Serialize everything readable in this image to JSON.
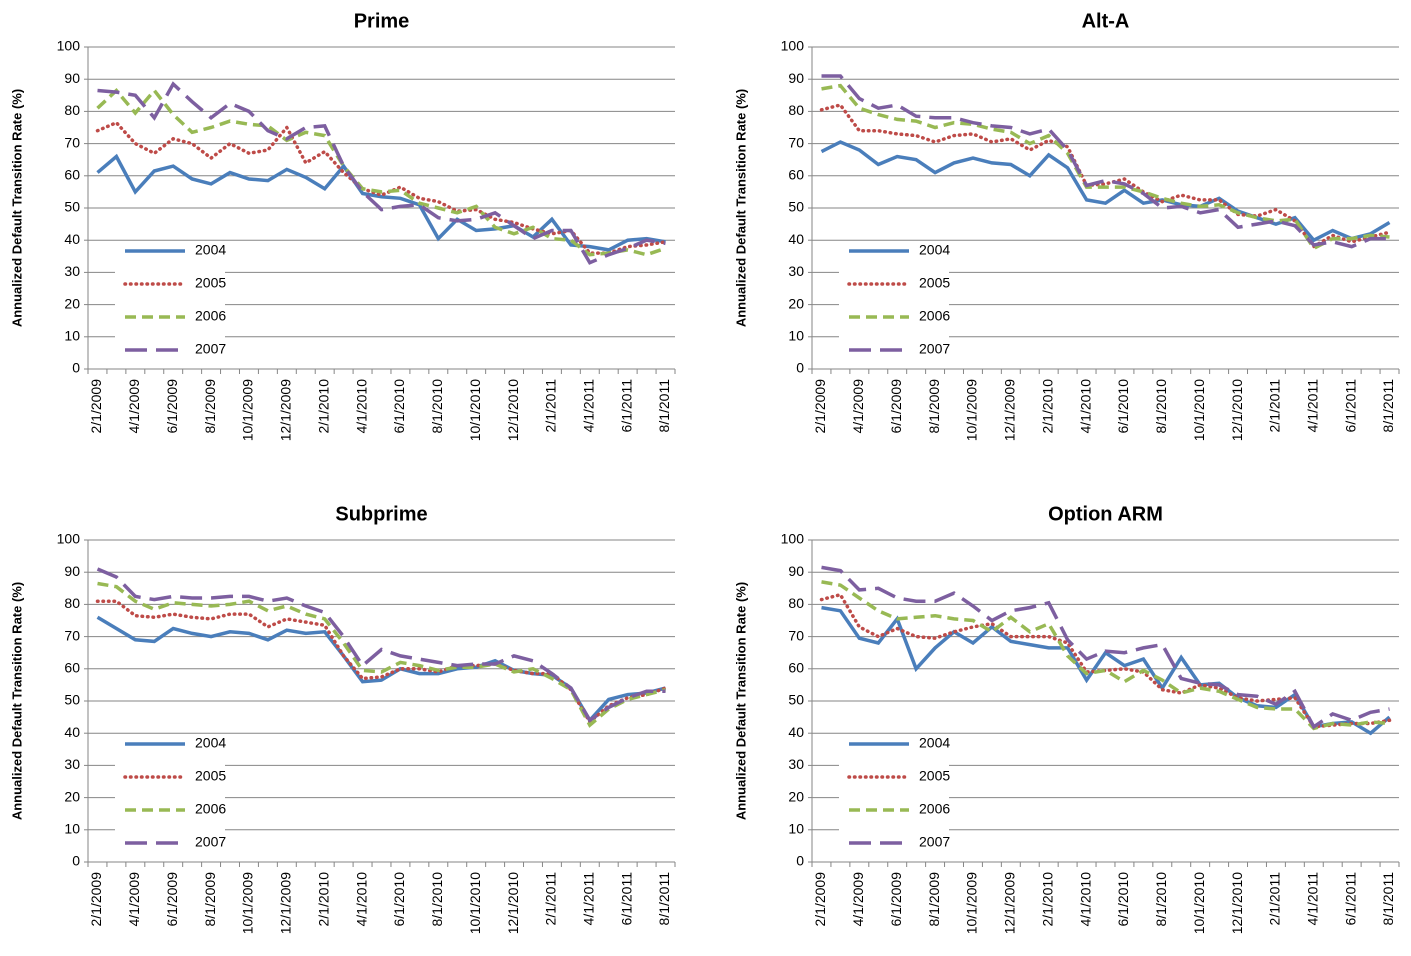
{
  "chart_data": [
    {
      "type": "line",
      "title": "Prime",
      "ylabel": "Annualized Default Transition Rate (%)",
      "categories": [
        "2/1/2009",
        null,
        "4/1/2009",
        null,
        "6/1/2009",
        null,
        "8/1/2009",
        null,
        "10/1/2009",
        null,
        "12/1/2009",
        null,
        "2/1/2010",
        null,
        "4/1/2010",
        null,
        "6/1/2010",
        null,
        "8/1/2010",
        null,
        "10/1/2010",
        null,
        "12/1/2010",
        null,
        "2/1/2011",
        null,
        "4/1/2011",
        null,
        "6/1/2011",
        null,
        "8/1/2011"
      ],
      "ylim": [
        0,
        100
      ],
      "yticks": [
        0,
        10,
        20,
        30,
        40,
        50,
        60,
        70,
        80,
        90,
        100
      ],
      "grid": true,
      "legend": "lower left",
      "series": [
        {
          "name": "2004",
          "color": "#4a7ebb",
          "dash": "solid",
          "values": [
            61,
            66,
            55,
            61.5,
            63,
            59,
            57.5,
            61,
            59,
            58.5,
            62,
            59.5,
            56,
            63,
            54.5,
            53.5,
            53,
            51,
            40.5,
            46.5,
            43,
            43.5,
            44.5,
            41,
            46.5,
            38.5,
            38,
            37,
            40,
            40.5,
            39.5
          ]
        },
        {
          "name": "2005",
          "color": "#be4b48",
          "dash": "dotted",
          "values": [
            74,
            76.5,
            70,
            67,
            71.5,
            70,
            65.5,
            70,
            67,
            68,
            75,
            64,
            67.5,
            61,
            56,
            54,
            56.5,
            53,
            52,
            49,
            49.5,
            46.5,
            45.5,
            43.5,
            42,
            43,
            36,
            36,
            38,
            38.5,
            39.5
          ]
        },
        {
          "name": "2006",
          "color": "#98b954",
          "dash": "dashed",
          "values": [
            81,
            86.5,
            79.5,
            86.5,
            79,
            73.5,
            75,
            77,
            76,
            75.5,
            71,
            73.5,
            72.5,
            63,
            56,
            55,
            55.5,
            51.5,
            50,
            48.5,
            50.5,
            44,
            42,
            44,
            40.5,
            40,
            35.5,
            36,
            37,
            35.5,
            37.5
          ]
        },
        {
          "name": "2007",
          "color": "#7d5fa0",
          "dash": "longdash",
          "values": [
            86.5,
            86,
            85,
            78,
            88.5,
            83,
            78,
            82.5,
            80,
            74,
            71.5,
            75,
            75.5,
            63,
            55,
            49.5,
            50.5,
            51,
            47,
            46,
            46.5,
            48.5,
            44.5,
            40.5,
            43,
            43,
            33,
            35.5,
            37.5,
            40,
            39
          ]
        }
      ]
    },
    {
      "type": "line",
      "title": "Alt-A",
      "ylabel": "Annualized Default Transition Rate (%)",
      "categories": [
        "2/1/2009",
        null,
        "4/1/2009",
        null,
        "6/1/2009",
        null,
        "8/1/2009",
        null,
        "10/1/2009",
        null,
        "12/1/2009",
        null,
        "2/1/2010",
        null,
        "4/1/2010",
        null,
        "6/1/2010",
        null,
        "8/1/2010",
        null,
        "10/1/2010",
        null,
        "12/1/2010",
        null,
        "2/1/2011",
        null,
        "4/1/2011",
        null,
        "6/1/2011",
        null,
        "8/1/2011"
      ],
      "ylim": [
        0,
        100
      ],
      "yticks": [
        0,
        10,
        20,
        30,
        40,
        50,
        60,
        70,
        80,
        90,
        100
      ],
      "grid": true,
      "legend": "lower left",
      "series": [
        {
          "name": "2004",
          "color": "#4a7ebb",
          "dash": "solid",
          "values": [
            67.5,
            70.5,
            68,
            63.5,
            66,
            65,
            61,
            64,
            65.5,
            64,
            63.5,
            60,
            66.5,
            62.5,
            52.5,
            51.5,
            55.5,
            51.5,
            52.5,
            51,
            50.5,
            53,
            49,
            47,
            45,
            47,
            40,
            43,
            40.5,
            42,
            45.5
          ]
        },
        {
          "name": "2005",
          "color": "#be4b48",
          "dash": "dotted",
          "values": [
            80.5,
            82,
            74,
            74,
            73,
            72.5,
            70.5,
            72.5,
            73,
            70.5,
            71.5,
            68,
            71,
            69,
            57,
            57.5,
            59,
            55,
            52,
            54,
            52.5,
            52.5,
            48,
            47.5,
            49.5,
            46,
            38,
            41.5,
            39.5,
            41,
            42.5
          ]
        },
        {
          "name": "2006",
          "color": "#98b954",
          "dash": "dashed",
          "values": [
            87,
            88,
            81,
            79,
            77.5,
            77,
            75,
            76.5,
            76,
            74.5,
            73.5,
            70,
            72.5,
            67,
            56.5,
            56.5,
            56.5,
            55,
            53,
            51.5,
            50.5,
            51,
            48.5,
            47,
            46,
            46.5,
            37.5,
            40.5,
            40.5,
            41.5,
            41
          ]
        },
        {
          "name": "2007",
          "color": "#7d5fa0",
          "dash": "longdash",
          "values": [
            91,
            91,
            84,
            81,
            82,
            78.5,
            78,
            78,
            76.5,
            75.5,
            75,
            73,
            74.5,
            68,
            57,
            58.5,
            57.5,
            54.5,
            50,
            50.5,
            48.5,
            49.5,
            44,
            45,
            46,
            44.5,
            38.5,
            39.5,
            38,
            40.5,
            40.5
          ]
        }
      ]
    },
    {
      "type": "line",
      "title": "Subprime",
      "ylabel": "Annualized Default Transition Rate (%)",
      "categories": [
        "2/1/2009",
        null,
        "4/1/2009",
        null,
        "6/1/2009",
        null,
        "8/1/2009",
        null,
        "10/1/2009",
        null,
        "12/1/2009",
        null,
        "2/1/2010",
        null,
        "4/1/2010",
        null,
        "6/1/2010",
        null,
        "8/1/2010",
        null,
        "10/1/2010",
        null,
        "12/1/2010",
        null,
        "2/1/2011",
        null,
        "4/1/2011",
        null,
        "6/1/2011",
        null,
        "8/1/2011"
      ],
      "ylim": [
        0,
        100
      ],
      "yticks": [
        0,
        10,
        20,
        30,
        40,
        50,
        60,
        70,
        80,
        90,
        100
      ],
      "grid": true,
      "legend": "lower left",
      "series": [
        {
          "name": "2004",
          "color": "#4a7ebb",
          "dash": "solid",
          "values": [
            76,
            72.5,
            69,
            68.5,
            72.5,
            71,
            70,
            71.5,
            71,
            69,
            72,
            71,
            71.5,
            64,
            56,
            56.5,
            60,
            58.5,
            58.5,
            60,
            60.5,
            62.5,
            59.5,
            58.5,
            58,
            54,
            44,
            50.5,
            52,
            52.5,
            54
          ]
        },
        {
          "name": "2005",
          "color": "#be4b48",
          "dash": "dotted",
          "values": [
            81,
            81,
            76.5,
            76,
            77,
            76,
            75.5,
            77,
            77,
            73,
            75.5,
            74.5,
            73.5,
            64,
            57,
            57.5,
            60,
            60,
            59,
            61,
            61,
            61.5,
            59.5,
            58.5,
            58.5,
            53.5,
            43.5,
            48.5,
            51,
            52,
            54
          ]
        },
        {
          "name": "2006",
          "color": "#98b954",
          "dash": "dashed",
          "values": [
            86.5,
            85.5,
            81,
            78.5,
            80.5,
            80,
            79.5,
            80,
            81,
            78,
            79.5,
            77,
            75.5,
            68,
            59.5,
            59,
            62,
            61,
            59.5,
            60.5,
            60.5,
            61.5,
            59,
            60,
            57,
            53.5,
            42.5,
            47.5,
            50.5,
            52,
            53.5
          ]
        },
        {
          "name": "2007",
          "color": "#7d5fa0",
          "dash": "longdash",
          "values": [
            91,
            88.5,
            82.5,
            81.5,
            82.5,
            82,
            82,
            82.5,
            82.5,
            81,
            82,
            79.5,
            77.5,
            70,
            61,
            66,
            64,
            63,
            62,
            61,
            61.5,
            61.5,
            64,
            62.5,
            58.5,
            54,
            44,
            48,
            51,
            53,
            53
          ]
        }
      ]
    },
    {
      "type": "line",
      "title": "Option ARM",
      "ylabel": "Annualized Default Transition Rate (%)",
      "categories": [
        "2/1/2009",
        null,
        "4/1/2009",
        null,
        "6/1/2009",
        null,
        "8/1/2009",
        null,
        "10/1/2009",
        null,
        "12/1/2009",
        null,
        "2/1/2010",
        null,
        "4/1/2010",
        null,
        "6/1/2010",
        null,
        "8/1/2010",
        null,
        "10/1/2010",
        null,
        "12/1/2010",
        null,
        "2/1/2011",
        null,
        "4/1/2011",
        null,
        "6/1/2011",
        null,
        "8/1/2011"
      ],
      "ylim": [
        0,
        100
      ],
      "yticks": [
        0,
        10,
        20,
        30,
        40,
        50,
        60,
        70,
        80,
        90,
        100
      ],
      "grid": true,
      "legend": "lower left",
      "series": [
        {
          "name": "2004",
          "color": "#4a7ebb",
          "dash": "solid",
          "values": [
            79,
            78,
            69.5,
            68,
            75.5,
            60,
            66.5,
            71.5,
            68,
            73,
            68.5,
            67.5,
            66.5,
            66.5,
            56.5,
            65,
            61,
            63,
            54,
            63.5,
            55,
            55.5,
            51,
            48.5,
            48,
            52,
            42,
            43,
            43.5,
            40,
            45
          ]
        },
        {
          "name": "2005",
          "color": "#be4b48",
          "dash": "dotted",
          "values": [
            81.5,
            83,
            73,
            70,
            72.5,
            70,
            69.5,
            71.5,
            73,
            74,
            70,
            70,
            70,
            68,
            59,
            59.5,
            60,
            59,
            53.5,
            52.5,
            55,
            54,
            51,
            50,
            50.5,
            51,
            42,
            42.5,
            43,
            43,
            44
          ]
        },
        {
          "name": "2006",
          "color": "#98b954",
          "dash": "dashed",
          "values": [
            87,
            86,
            82,
            78,
            75.5,
            76,
            76.5,
            75.5,
            75,
            71.5,
            76,
            71.5,
            74,
            64,
            58.5,
            59.5,
            56,
            59.5,
            56.5,
            52.5,
            54,
            53,
            50.5,
            48,
            47.5,
            47.5,
            41.5,
            43,
            42.5,
            43.5,
            43
          ]
        },
        {
          "name": "2007",
          "color": "#7d5fa0",
          "dash": "longdash",
          "values": [
            91.5,
            90.5,
            84.5,
            85,
            82,
            81,
            81,
            83.5,
            79.5,
            75,
            78,
            79,
            80.5,
            69,
            63,
            65.5,
            65,
            66.5,
            67.5,
            57,
            55.5,
            55,
            52,
            51.5,
            49,
            53,
            42,
            46,
            44,
            46.5,
            47.5
          ]
        }
      ]
    }
  ]
}
